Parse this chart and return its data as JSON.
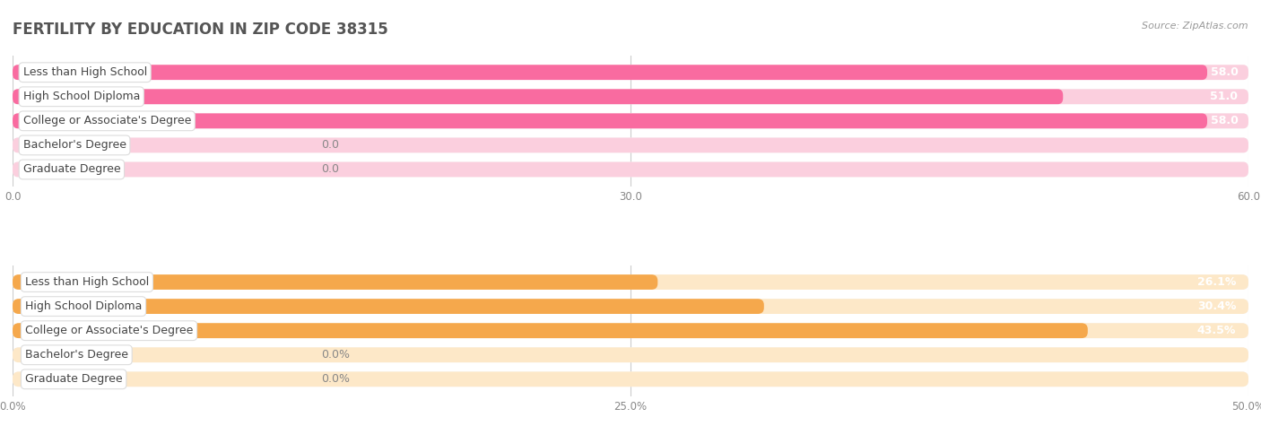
{
  "title": "FERTILITY BY EDUCATION IN ZIP CODE 38315",
  "source": "Source: ZipAtlas.com",
  "top_chart": {
    "categories": [
      "Less than High School",
      "High School Diploma",
      "College or Associate's Degree",
      "Bachelor's Degree",
      "Graduate Degree"
    ],
    "values": [
      58.0,
      51.0,
      58.0,
      0.0,
      0.0
    ],
    "xlim": [
      0,
      60
    ],
    "xticks": [
      0.0,
      30.0,
      60.0
    ],
    "xtick_labels": [
      "0.0",
      "30.0",
      "60.0"
    ],
    "bar_color_full": "#F96BA0",
    "bar_color_light": "#F9AECB",
    "value_labels": [
      "58.0",
      "51.0",
      "58.0",
      "0.0",
      "0.0"
    ],
    "threshold": 5.0
  },
  "bottom_chart": {
    "categories": [
      "Less than High School",
      "High School Diploma",
      "College or Associate's Degree",
      "Bachelor's Degree",
      "Graduate Degree"
    ],
    "values": [
      26.1,
      30.4,
      43.5,
      0.0,
      0.0
    ],
    "xlim": [
      0,
      50
    ],
    "xticks": [
      0.0,
      25.0,
      50.0
    ],
    "xtick_labels": [
      "0.0%",
      "25.0%",
      "50.0%"
    ],
    "bar_color_full": "#F5A84C",
    "bar_color_light": "#FAD3A0",
    "value_labels": [
      "26.1%",
      "30.4%",
      "43.5%",
      "0.0%",
      "0.0%"
    ],
    "threshold": 5.0
  },
  "bg_color": "#FFFFFF",
  "bar_bg_color_top": "#FBCFDE",
  "bar_bg_color_bottom": "#FDE8C8",
  "row_bg_color": "#F5F5F5",
  "label_box_color": "#FFFFFF",
  "label_box_edge": "#DDDDDD",
  "label_text_color": "#444444",
  "title_color": "#555555",
  "value_text_color_inside": "#FFFFFF",
  "value_text_color_outside": "#888888",
  "bar_height": 0.62,
  "label_fontsize": 9,
  "value_fontsize": 9,
  "title_fontsize": 12,
  "tick_fontsize": 8.5
}
